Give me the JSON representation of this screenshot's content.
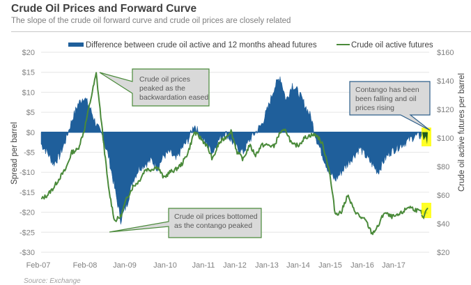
{
  "header": {
    "title": "Crude Oil Prices and Forward Curve",
    "subtitle": "The slope of the crude oil forward curve and crude oil prices are closely related"
  },
  "source": "Source: Exchange",
  "colors": {
    "spread": "#1f5f9b",
    "price": "#4a8a3a",
    "highlight": "#ffff00",
    "callout_fill": "#d9d9d9",
    "callout_border_green": "#4a8a3a",
    "callout_border_blue": "#2e5f8a"
  },
  "chart_data": {
    "type": "area+line",
    "title": "Crude Oil Prices and Forward Curve",
    "subtitle": "The slope of the crude oil forward curve and crude oil prices are closely related",
    "xlabel": "",
    "ylabel_left": "Spread per barrel",
    "ylabel_right": "Crude oil active futures  per barrel",
    "ylim_left": [
      -30,
      20
    ],
    "ylim_right": [
      20,
      160
    ],
    "yticks_left": [
      "$20",
      "$15",
      "$10",
      "$5",
      "$0",
      "-$5",
      "-$10",
      "-$15",
      "-$20",
      "-$25",
      "-$30"
    ],
    "yticks_right": [
      "$160",
      "$140",
      "$120",
      "$100",
      "$80",
      "$60",
      "$40",
      "$20"
    ],
    "xticks": [
      "Feb-07",
      "Feb-08",
      "Jan-09",
      "Jan-10",
      "Jan-11",
      "Jan-12",
      "Jan-13",
      "Jan-14",
      "Jan-15",
      "Jan-16",
      "Jan-17"
    ],
    "grid": true,
    "legend_position": "top",
    "x": [
      "2007-01",
      "2007-03",
      "2007-05",
      "2007-07",
      "2007-09",
      "2007-11",
      "2008-01",
      "2008-03",
      "2008-05",
      "2008-07",
      "2008-09",
      "2008-11",
      "2009-01",
      "2009-03",
      "2009-05",
      "2009-07",
      "2009-09",
      "2009-11",
      "2010-01",
      "2010-03",
      "2010-05",
      "2010-07",
      "2010-09",
      "2010-11",
      "2011-01",
      "2011-03",
      "2011-05",
      "2011-07",
      "2011-09",
      "2011-11",
      "2012-01",
      "2012-03",
      "2012-05",
      "2012-07",
      "2012-09",
      "2012-11",
      "2013-01",
      "2013-03",
      "2013-05",
      "2013-07",
      "2013-09",
      "2013-11",
      "2014-01",
      "2014-03",
      "2014-05",
      "2014-07",
      "2014-09",
      "2014-11",
      "2015-01",
      "2015-03",
      "2015-05",
      "2015-07",
      "2015-09",
      "2015-11",
      "2016-01",
      "2016-03",
      "2016-05",
      "2016-07",
      "2016-09",
      "2016-11",
      "2017-01",
      "2017-03",
      "2017-05",
      "2017-07"
    ],
    "series": [
      {
        "name": "Difference between crude oil active and 12 months ahead futures",
        "axis": "left",
        "type": "area",
        "values": [
          -3,
          -5,
          -8,
          -6,
          -2,
          3,
          7,
          9,
          6,
          2,
          -1,
          -6,
          -14,
          -22,
          -18,
          -12,
          -9,
          -8,
          -7,
          -9,
          -6,
          -5,
          -7,
          -4,
          -2,
          2,
          -1,
          -3,
          -5,
          -2,
          0,
          -2,
          -4,
          -5,
          -2,
          0,
          2,
          6,
          11,
          14,
          8,
          12,
          10,
          7,
          4,
          -2,
          -6,
          -10,
          -12,
          -10,
          -8,
          -6,
          -4,
          -6,
          -8,
          -10,
          -7,
          -5,
          -4,
          -3,
          -2,
          -1,
          -1,
          -0.5
        ]
      },
      {
        "name": "Crude oil active futures",
        "axis": "right",
        "type": "line",
        "values": [
          57,
          60,
          65,
          72,
          78,
          90,
          92,
          105,
          125,
          145,
          105,
          65,
          42,
          45,
          58,
          66,
          70,
          78,
          78,
          80,
          72,
          76,
          78,
          82,
          90,
          104,
          100,
          95,
          85,
          96,
          100,
          105,
          90,
          85,
          95,
          88,
          95,
          95,
          94,
          104,
          105,
          95,
          95,
          100,
          102,
          102,
          95,
          78,
          47,
          48,
          60,
          50,
          45,
          42,
          33,
          38,
          48,
          45,
          45,
          48,
          52,
          50,
          48,
          47
        ]
      }
    ],
    "annotations": [
      {
        "text": [
          "Crude oil prices",
          "peaked as the",
          "backwardation eased"
        ],
        "target": "Jul-08 peak"
      },
      {
        "text": [
          "Crude oil prices bottomed",
          "as the contango peaked"
        ],
        "target": "Feb-09 trough"
      },
      {
        "text": [
          "Contango has been",
          "been falling and oil",
          "prices rising"
        ],
        "target": "Jun-17 spread"
      }
    ]
  }
}
